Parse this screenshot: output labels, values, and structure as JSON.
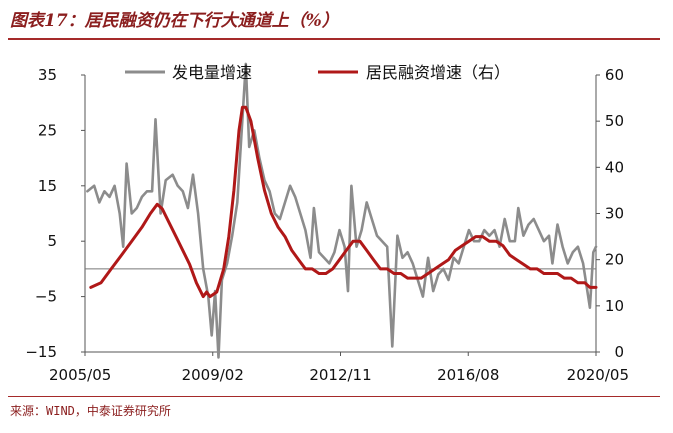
{
  "header": {
    "title": "图表17：居民融资仍在下行大通道上（%）"
  },
  "footer": {
    "source": "来源：WIND，中泰证券研究所"
  },
  "chart_data": {
    "type": "line",
    "title": "图表17：居民融资仍在下行大通道上（%）",
    "left_axis": {
      "ylim": [
        -15,
        35
      ],
      "ticks": [
        "35",
        "25",
        "15",
        "5",
        "−5",
        "−15"
      ]
    },
    "right_axis": {
      "ylim": [
        0,
        60
      ],
      "ticks": [
        "60",
        "50",
        "40",
        "30",
        "20",
        "10",
        "0"
      ]
    },
    "x_tick_labels": [
      "2005/05",
      "2009/02",
      "2012/11",
      "2016/08",
      "2020/05"
    ],
    "x_range": [
      2005.33,
      2020.33
    ],
    "grid": false,
    "zero_line": true,
    "legend_position": "top",
    "series": [
      {
        "name": "发电量增速",
        "axis": "left",
        "color": "#8c8c8c",
        "points": [
          [
            2005.4,
            14
          ],
          [
            2005.6,
            15
          ],
          [
            2005.75,
            12
          ],
          [
            2005.9,
            14
          ],
          [
            2006.05,
            13
          ],
          [
            2006.2,
            15
          ],
          [
            2006.35,
            10
          ],
          [
            2006.45,
            4
          ],
          [
            2006.55,
            19
          ],
          [
            2006.7,
            10
          ],
          [
            2006.85,
            11
          ],
          [
            2007.0,
            13
          ],
          [
            2007.15,
            14
          ],
          [
            2007.3,
            14
          ],
          [
            2007.4,
            27
          ],
          [
            2007.55,
            10
          ],
          [
            2007.7,
            16
          ],
          [
            2007.9,
            17
          ],
          [
            2008.05,
            15
          ],
          [
            2008.2,
            14
          ],
          [
            2008.35,
            11
          ],
          [
            2008.5,
            17
          ],
          [
            2008.65,
            10
          ],
          [
            2008.8,
            0
          ],
          [
            2008.95,
            -5
          ],
          [
            2009.05,
            -12
          ],
          [
            2009.15,
            -4
          ],
          [
            2009.25,
            -16
          ],
          [
            2009.35,
            -2
          ],
          [
            2009.5,
            1
          ],
          [
            2009.65,
            6
          ],
          [
            2009.8,
            12
          ],
          [
            2009.95,
            27
          ],
          [
            2010.05,
            37
          ],
          [
            2010.15,
            22
          ],
          [
            2010.3,
            25
          ],
          [
            2010.45,
            20
          ],
          [
            2010.6,
            16
          ],
          [
            2010.75,
            14
          ],
          [
            2010.9,
            10
          ],
          [
            2011.05,
            9
          ],
          [
            2011.2,
            12
          ],
          [
            2011.35,
            15
          ],
          [
            2011.5,
            13
          ],
          [
            2011.65,
            10
          ],
          [
            2011.8,
            7
          ],
          [
            2011.95,
            2
          ],
          [
            2012.05,
            11
          ],
          [
            2012.2,
            3
          ],
          [
            2012.35,
            2
          ],
          [
            2012.5,
            1
          ],
          [
            2012.65,
            3
          ],
          [
            2012.8,
            7
          ],
          [
            2012.95,
            4
          ],
          [
            2013.05,
            -4
          ],
          [
            2013.15,
            15
          ],
          [
            2013.3,
            4
          ],
          [
            2013.45,
            7
          ],
          [
            2013.6,
            12
          ],
          [
            2013.75,
            9
          ],
          [
            2013.9,
            6
          ],
          [
            2014.05,
            5
          ],
          [
            2014.2,
            4
          ],
          [
            2014.35,
            -14
          ],
          [
            2014.5,
            6
          ],
          [
            2014.65,
            2
          ],
          [
            2014.8,
            3
          ],
          [
            2014.95,
            1
          ],
          [
            2015.1,
            -2
          ],
          [
            2015.25,
            -5
          ],
          [
            2015.4,
            2
          ],
          [
            2015.55,
            -4
          ],
          [
            2015.7,
            -1
          ],
          [
            2015.85,
            0
          ],
          [
            2016.0,
            -2
          ],
          [
            2016.15,
            2
          ],
          [
            2016.3,
            1
          ],
          [
            2016.45,
            4
          ],
          [
            2016.6,
            7
          ],
          [
            2016.75,
            5
          ],
          [
            2016.9,
            5
          ],
          [
            2017.05,
            7
          ],
          [
            2017.2,
            6
          ],
          [
            2017.35,
            7
          ],
          [
            2017.5,
            4
          ],
          [
            2017.65,
            9
          ],
          [
            2017.8,
            5
          ],
          [
            2017.95,
            5
          ],
          [
            2018.05,
            11
          ],
          [
            2018.2,
            6
          ],
          [
            2018.35,
            8
          ],
          [
            2018.5,
            9
          ],
          [
            2018.65,
            7
          ],
          [
            2018.8,
            5
          ],
          [
            2018.95,
            6
          ],
          [
            2019.05,
            1
          ],
          [
            2019.2,
            8
          ],
          [
            2019.35,
            4
          ],
          [
            2019.5,
            1
          ],
          [
            2019.65,
            3
          ],
          [
            2019.8,
            4
          ],
          [
            2019.95,
            1
          ],
          [
            2020.05,
            -3
          ],
          [
            2020.15,
            -7
          ],
          [
            2020.25,
            3
          ],
          [
            2020.33,
            4
          ]
        ]
      },
      {
        "name": "居民融资增速（右）",
        "axis": "right",
        "color": "#b01818",
        "points": [
          [
            2005.5,
            14
          ],
          [
            2005.8,
            15
          ],
          [
            2006.1,
            18
          ],
          [
            2006.4,
            21
          ],
          [
            2006.7,
            24
          ],
          [
            2007.0,
            27
          ],
          [
            2007.25,
            30
          ],
          [
            2007.45,
            32
          ],
          [
            2007.6,
            31
          ],
          [
            2007.8,
            28
          ],
          [
            2008.0,
            25
          ],
          [
            2008.2,
            22
          ],
          [
            2008.4,
            19
          ],
          [
            2008.6,
            15
          ],
          [
            2008.8,
            12
          ],
          [
            2008.9,
            13
          ],
          [
            2009.0,
            12
          ],
          [
            2009.2,
            13
          ],
          [
            2009.4,
            18
          ],
          [
            2009.55,
            25
          ],
          [
            2009.7,
            35
          ],
          [
            2009.85,
            48
          ],
          [
            2009.95,
            53
          ],
          [
            2010.05,
            53
          ],
          [
            2010.2,
            50
          ],
          [
            2010.4,
            42
          ],
          [
            2010.6,
            35
          ],
          [
            2010.8,
            30
          ],
          [
            2011.0,
            27
          ],
          [
            2011.2,
            25
          ],
          [
            2011.4,
            22
          ],
          [
            2011.6,
            20
          ],
          [
            2011.8,
            18
          ],
          [
            2012.0,
            18
          ],
          [
            2012.2,
            17
          ],
          [
            2012.4,
            17
          ],
          [
            2012.6,
            18
          ],
          [
            2012.8,
            20
          ],
          [
            2013.0,
            22
          ],
          [
            2013.2,
            24
          ],
          [
            2013.4,
            24
          ],
          [
            2013.6,
            22
          ],
          [
            2013.8,
            20
          ],
          [
            2014.0,
            18
          ],
          [
            2014.2,
            18
          ],
          [
            2014.4,
            17
          ],
          [
            2014.6,
            17
          ],
          [
            2014.8,
            16
          ],
          [
            2015.0,
            16
          ],
          [
            2015.2,
            16
          ],
          [
            2015.4,
            17
          ],
          [
            2015.6,
            18
          ],
          [
            2015.8,
            19
          ],
          [
            2016.0,
            20
          ],
          [
            2016.2,
            22
          ],
          [
            2016.4,
            23
          ],
          [
            2016.6,
            24
          ],
          [
            2016.8,
            25
          ],
          [
            2017.0,
            25
          ],
          [
            2017.2,
            24
          ],
          [
            2017.4,
            24
          ],
          [
            2017.6,
            23
          ],
          [
            2017.8,
            21
          ],
          [
            2018.0,
            20
          ],
          [
            2018.2,
            19
          ],
          [
            2018.4,
            18
          ],
          [
            2018.6,
            18
          ],
          [
            2018.8,
            17
          ],
          [
            2019.0,
            17
          ],
          [
            2019.2,
            17
          ],
          [
            2019.4,
            16
          ],
          [
            2019.6,
            16
          ],
          [
            2019.8,
            15
          ],
          [
            2020.0,
            15
          ],
          [
            2020.15,
            14
          ],
          [
            2020.33,
            14
          ]
        ]
      }
    ]
  }
}
